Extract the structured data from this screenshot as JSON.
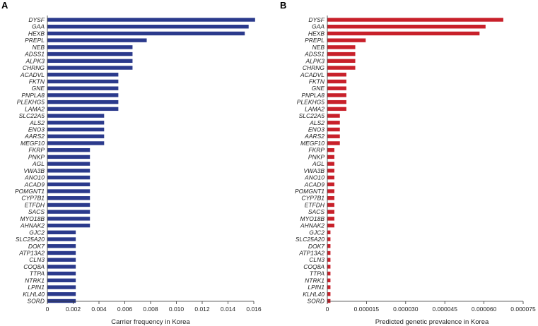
{
  "chart_data": [
    {
      "panel_label": "A",
      "type": "bar",
      "orientation": "horizontal",
      "color": "#2b3a8c",
      "categories": [
        "DYSF",
        "GAA",
        "HEXB",
        "PREPL",
        "NEB",
        "ADSS1",
        "ALPK3",
        "CHRNG",
        "ACADVL",
        "FKTN",
        "GNE",
        "PNPLA8",
        "PLEKHG5",
        "LAMA2",
        "SLC22A5",
        "ALS2",
        "ENO3",
        "AARS2",
        "MEGF10",
        "FKRP",
        "PNKP",
        "AGL",
        "VWA3B",
        "ANO10",
        "ACAD9",
        "POMGNT1",
        "CYP7B1",
        "ETFDH",
        "SACS",
        "MYO18B",
        "AHNAK2",
        "GJC2",
        "SLC25A20",
        "DOK7",
        "ATP13A2",
        "CLN3",
        "COQ8A",
        "TTPA",
        "NTRK1",
        "LPIN1",
        "KLHL40",
        "SORD"
      ],
      "values": [
        0.0161,
        0.0156,
        0.0153,
        0.0077,
        0.0066,
        0.0066,
        0.0066,
        0.0066,
        0.0055,
        0.0055,
        0.0055,
        0.0055,
        0.0055,
        0.0055,
        0.0044,
        0.0044,
        0.0044,
        0.0044,
        0.0044,
        0.0033,
        0.0033,
        0.0033,
        0.0033,
        0.0033,
        0.0033,
        0.0033,
        0.0033,
        0.0033,
        0.0033,
        0.0033,
        0.0033,
        0.0022,
        0.0022,
        0.0022,
        0.0022,
        0.0022,
        0.0022,
        0.0022,
        0.0022,
        0.0022,
        0.0022,
        0.0022
      ],
      "xlabel": "Carrier frequency in Korea",
      "xlim": [
        0,
        0.016
      ],
      "ticks": [
        0,
        0.002,
        0.004,
        0.006,
        0.008,
        0.01,
        0.012,
        0.014,
        0.016
      ],
      "tick_labels": [
        "0",
        "0.002",
        "0.004",
        "0.006",
        "0.008",
        "0.010",
        "0.012",
        "0.014",
        "0.016"
      ]
    },
    {
      "panel_label": "B",
      "type": "bar",
      "orientation": "horizontal",
      "color": "#c8202a",
      "categories": [
        "DYSF",
        "GAA",
        "HEXB",
        "PREPL",
        "NEB",
        "ADSS1",
        "ALPK3",
        "CHRNG",
        "ACADVL",
        "FKTN",
        "GNE",
        "PNPLA8",
        "PLEKHG5",
        "LAMA2",
        "SLC22A5",
        "ALS2",
        "ENO3",
        "AARS2",
        "MEGF10",
        "FKRP",
        "PNKP",
        "AGL",
        "VWA3B",
        "ANO10",
        "ACAD9",
        "POMGNT1",
        "CYP7B1",
        "ETFDH",
        "SACS",
        "MYO18B",
        "AHNAK2",
        "GJC2",
        "SLC25A20",
        "DOK7",
        "ATP13A2",
        "CLN3",
        "COQ8A",
        "TTPA",
        "NTRK1",
        "LPIN1",
        "KLHL40",
        "SORD"
      ],
      "values": [
        6.74e-05,
        6.06e-05,
        5.83e-05,
        1.47e-05,
        1.07e-05,
        1.07e-05,
        1.07e-05,
        1.07e-05,
        7.3e-06,
        7.3e-06,
        7.3e-06,
        7.3e-06,
        7.3e-06,
        7.3e-06,
        4.8e-06,
        4.8e-06,
        4.8e-06,
        4.8e-06,
        4.8e-06,
        2.7e-06,
        2.7e-06,
        2.7e-06,
        2.7e-06,
        2.7e-06,
        2.7e-06,
        2.7e-06,
        2.7e-06,
        2.7e-06,
        2.7e-06,
        2.7e-06,
        2.7e-06,
        1.2e-06,
        1.2e-06,
        1.2e-06,
        1.2e-06,
        1.2e-06,
        1.2e-06,
        1.2e-06,
        1.2e-06,
        1.2e-06,
        1.2e-06,
        1.2e-06
      ],
      "xlabel": "Predicted genetic prevalence in Korea",
      "xlim": [
        0,
        7.5e-05
      ],
      "ticks": [
        0,
        1.5e-05,
        3e-05,
        4.5e-05,
        6e-05,
        7.5e-05
      ],
      "tick_labels": [
        "0",
        "0.000015",
        "0.000030",
        "0.000045",
        "0.000060",
        "0.000075"
      ]
    }
  ]
}
